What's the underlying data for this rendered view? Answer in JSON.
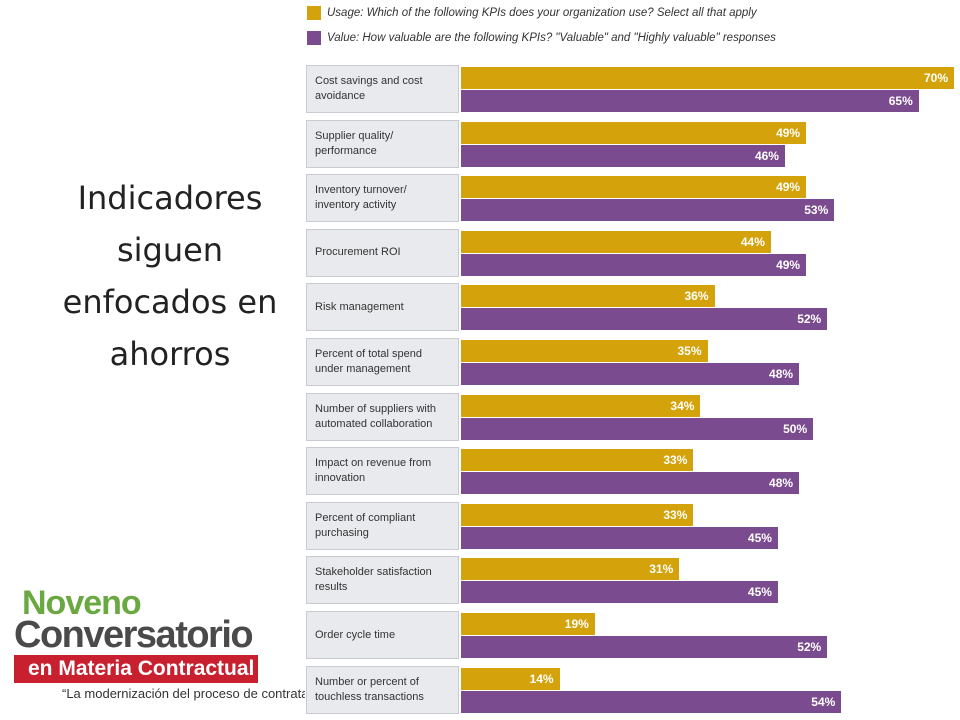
{
  "slide": {
    "heading": "Indicadores siguen enfocados en ahorros",
    "logo": [
      "Noveno",
      "Conversatorio",
      "en Materia Contractual",
      "“La modernización del proceso de contratación d"
    ]
  },
  "chart_data": {
    "type": "bar",
    "orientation": "horizontal",
    "categories": [
      "Cost savings and cost avoidance",
      "Supplier quality/ performance",
      "Inventory turnover/ inventory activity",
      "Procurement ROI",
      "Risk management",
      "Percent of total spend under management",
      "Number of suppliers with automated collaboration",
      "Impact on revenue from innovation",
      "Percent of compliant purchasing",
      "Stakeholder satisfaction results",
      "Order cycle time",
      "Number or percent of touchless transactions"
    ],
    "series": [
      {
        "name": "Usage: Which of the following KPIs does your organization use? Select all that apply",
        "color": "#d4a20a",
        "values": [
          70,
          49,
          49,
          44,
          36,
          35,
          34,
          33,
          33,
          31,
          19,
          14
        ],
        "value_labels": [
          "70%",
          "49%",
          "49%",
          "44%",
          "36%",
          "35%",
          "34%",
          "33%",
          "33%",
          "31%",
          "19%",
          "14%"
        ]
      },
      {
        "name": "Value: How valuable are the following KPIs? \"Valuable\" and \"Highly valuable\" responses",
        "color": "#7b4b8f",
        "values": [
          65,
          46,
          53,
          49,
          52,
          48,
          50,
          48,
          45,
          45,
          52,
          54
        ],
        "value_labels": [
          "65%",
          "46%",
          "53%",
          "49%",
          "52%",
          "48%",
          "50%",
          "48%",
          "45%",
          "45%",
          "52%",
          "54%"
        ]
      }
    ]
  }
}
